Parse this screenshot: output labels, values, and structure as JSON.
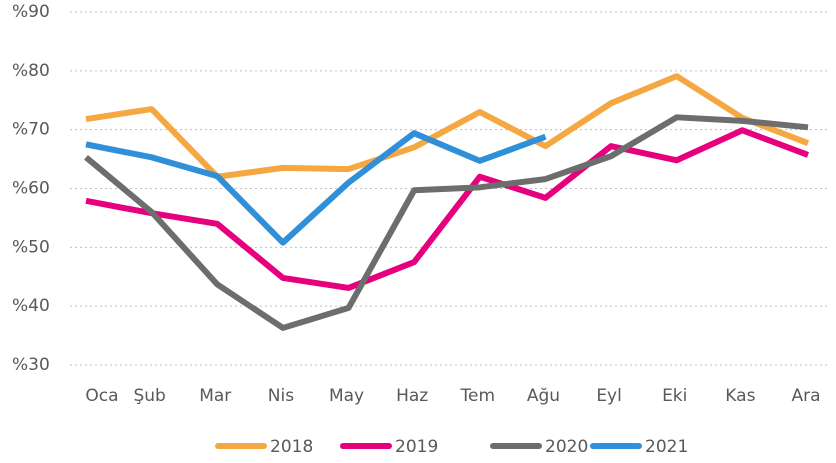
{
  "chart_data": {
    "type": "line",
    "categories": [
      "Oca",
      "Şub",
      "Mar",
      "Nis",
      "May",
      "Haz",
      "Tem",
      "Ağu",
      "Eyl",
      "Eki",
      "Kas",
      "Ara"
    ],
    "series": [
      {
        "name": "2018",
        "color": "#f5a742",
        "values": [
          71.8,
          73.5,
          62,
          63.5,
          63.3,
          67,
          73,
          67.2,
          74.5,
          79.1,
          72,
          67.7
        ]
      },
      {
        "name": "2019",
        "color": "#e6007e",
        "values": [
          57.9,
          55.8,
          54,
          44.8,
          43.1,
          47.5,
          62,
          58.4,
          67.2,
          64.8,
          69.9,
          65.7
        ]
      },
      {
        "name": "2020",
        "color": "#6d6d6d",
        "values": [
          65.3,
          56,
          43.7,
          36.3,
          39.7,
          59.7,
          60.2,
          61.6,
          65.5,
          72.1,
          71.5,
          70.4
        ]
      },
      {
        "name": "2021",
        "color": "#2f8fd8",
        "values": [
          67.5,
          65.3,
          62.1,
          50.8,
          61,
          69.4,
          64.7,
          68.8,
          null,
          null,
          null,
          null
        ]
      }
    ],
    "ylim": [
      30,
      90
    ],
    "yticks": [
      {
        "value": 30,
        "label": "%30"
      },
      {
        "value": 40,
        "label": "%40"
      },
      {
        "value": 50,
        "label": "%50"
      },
      {
        "value": 60,
        "label": "%60"
      },
      {
        "value": 70,
        "label": "%70"
      },
      {
        "value": 80,
        "label": "%80"
      },
      {
        "value": 90,
        "label": "%90"
      }
    ],
    "grid": true
  }
}
